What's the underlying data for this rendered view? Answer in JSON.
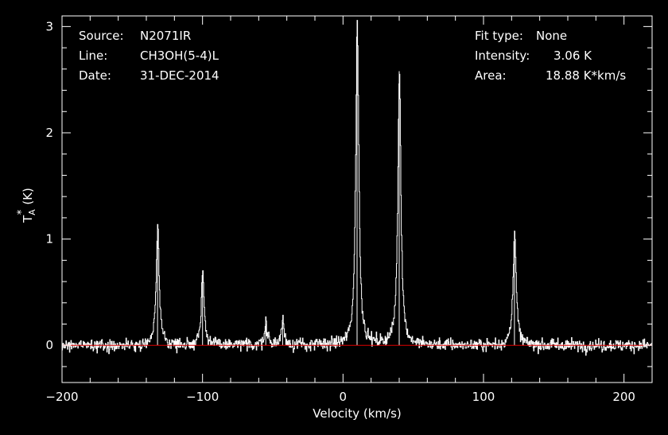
{
  "chart_data": {
    "type": "line",
    "xlabel": "Velocity (km/s)",
    "ylabel": "T",
    "ylabel_sub": "A",
    "ylabel_sup": "*",
    "ylabel_unit": "(K)",
    "xlim": [
      -200,
      220
    ],
    "ylim": [
      -0.35,
      3.1
    ],
    "x_ticks": [
      -200,
      -100,
      0,
      100,
      200
    ],
    "x_tick_labels": [
      "−200",
      "−100",
      "0",
      "100",
      "200"
    ],
    "y_ticks": [
      0,
      1,
      2,
      3
    ],
    "y_tick_labels": [
      "0",
      "1",
      "2",
      "3"
    ],
    "baseline": 0,
    "grid": false,
    "colors": {
      "background": "#000000",
      "trace": "#ffffff",
      "baseline": "#e00000",
      "axes": "#ffffff"
    },
    "header_left": [
      {
        "key": "Source:",
        "value": "N2071IR"
      },
      {
        "key": "Line:",
        "value": "CH3OH(5-4)L"
      },
      {
        "key": "Date:",
        "value": "31-DEC-2014"
      }
    ],
    "header_right": [
      {
        "key": "Fit type:",
        "value": "None"
      },
      {
        "key": "Intensity:",
        "value": "3.06 K"
      },
      {
        "key": "Area:",
        "value": "18.88 K*km/s"
      }
    ],
    "series": [
      {
        "peaks": [
          {
            "x": -132,
            "y": 1.08
          },
          {
            "x": -100,
            "y": 0.66
          },
          {
            "x": -55,
            "y": 0.2
          },
          {
            "x": -43,
            "y": 0.22
          },
          {
            "x": 10,
            "y": 3.06
          },
          {
            "x": 40,
            "y": 2.58
          },
          {
            "x": 122,
            "y": 1.08
          }
        ],
        "noise_rms": 0.05
      }
    ]
  }
}
